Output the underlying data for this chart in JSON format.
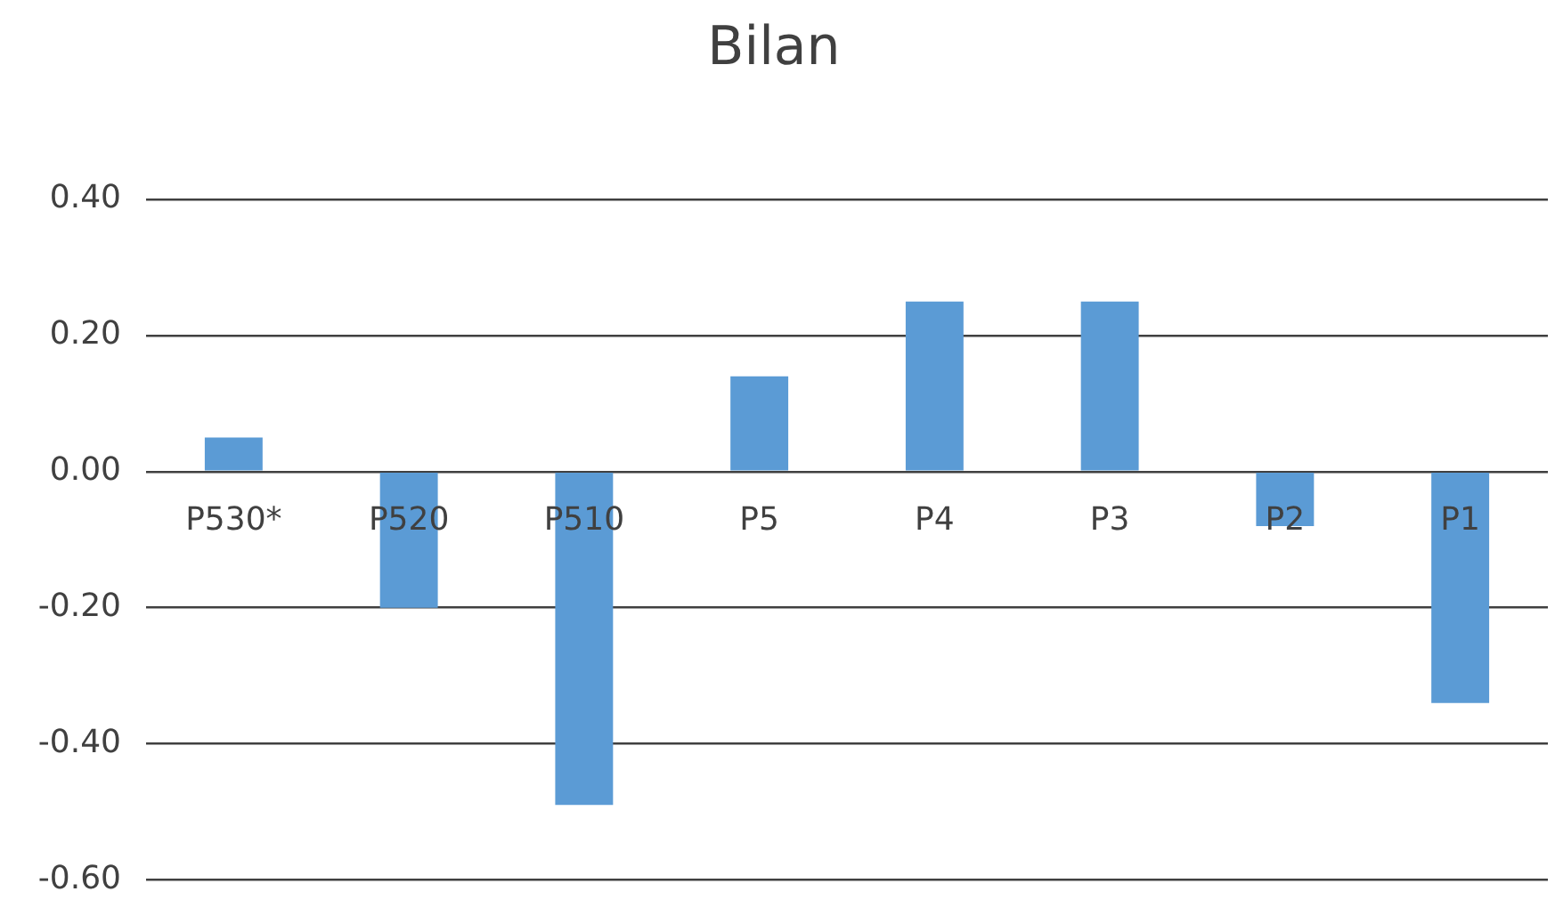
{
  "chart_data": {
    "type": "bar",
    "title": "Bilan",
    "categories": [
      "P530*",
      "P520",
      "P510",
      "P5",
      "P4",
      "P3",
      "P2",
      "P1"
    ],
    "values": [
      0.05,
      -0.2,
      -0.49,
      0.14,
      0.25,
      0.25,
      -0.08,
      -0.34
    ],
    "color": "#5b9bd5",
    "ylim": [
      -0.6,
      0.4
    ],
    "yticks": [
      {
        "value": -0.6,
        "label": "-0.60"
      },
      {
        "value": -0.4,
        "label": "-0.40"
      },
      {
        "value": -0.2,
        "label": "-0.20"
      },
      {
        "value": 0,
        "label": "0.00"
      },
      {
        "value": 0.2,
        "label": "0.20"
      },
      {
        "value": 0.4,
        "label": "0.40"
      }
    ],
    "grid": "y",
    "legend": false
  }
}
